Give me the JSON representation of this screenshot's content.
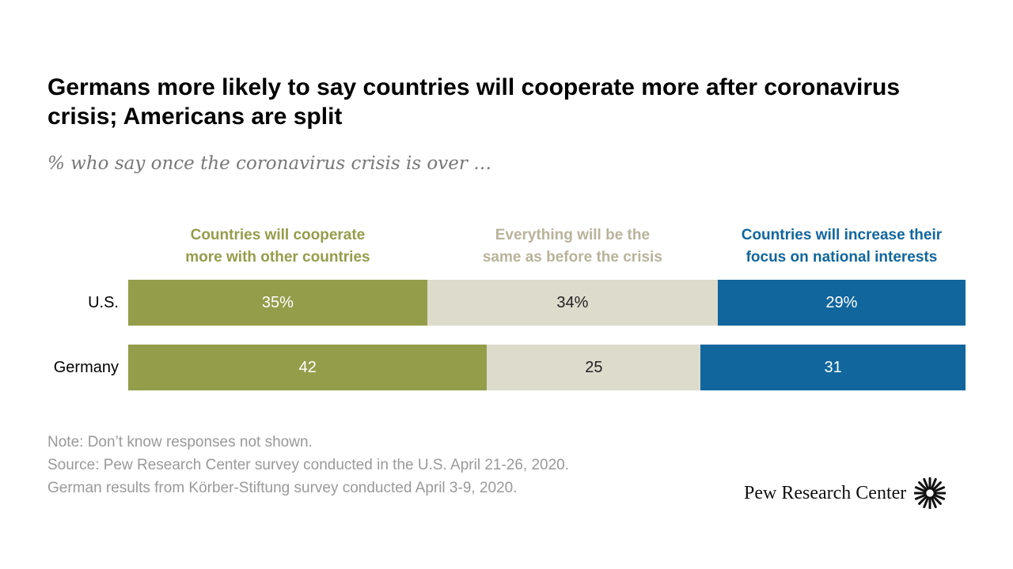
{
  "title": "Germans more likely to say countries will cooperate more after coronavirus crisis; Americans are split",
  "subtitle": "% who say once the coronavirus crisis is over …",
  "notes": [
    "Note: Don’t know responses not shown.",
    "Source: Pew Research Center survey conducted in the U.S. April 21-26, 2020.",
    "German results from Körber-Stiftung survey conducted April 3-9, 2020."
  ],
  "logo": {
    "text": "Pew Research Center",
    "icon": "pew-sunburst-icon"
  },
  "colors": {
    "cooperate": "#949d4a",
    "same": "#dddbcc",
    "national": "#11669d"
  },
  "chart_data": {
    "type": "bar",
    "orientation": "horizontal",
    "stacked": true,
    "xlim": [
      0,
      100
    ],
    "categories": [
      "U.S.",
      "Germany"
    ],
    "series": [
      {
        "name": "Countries will cooperate more with other countries",
        "values": [
          35,
          42
        ],
        "labels": [
          "35%",
          "42"
        ]
      },
      {
        "name": "Everything will be the same as before the crisis",
        "values": [
          34,
          25
        ],
        "labels": [
          "34%",
          "25"
        ]
      },
      {
        "name": "Countries will increase their focus on national interests",
        "values": [
          29,
          31
        ],
        "labels": [
          "29%",
          "31"
        ]
      }
    ],
    "legend_lines": [
      [
        "Countries will cooperate",
        "more with other countries"
      ],
      [
        "Everything will be the",
        "same as before the crisis"
      ],
      [
        "Countries will increase their",
        "focus on national interests"
      ]
    ]
  }
}
